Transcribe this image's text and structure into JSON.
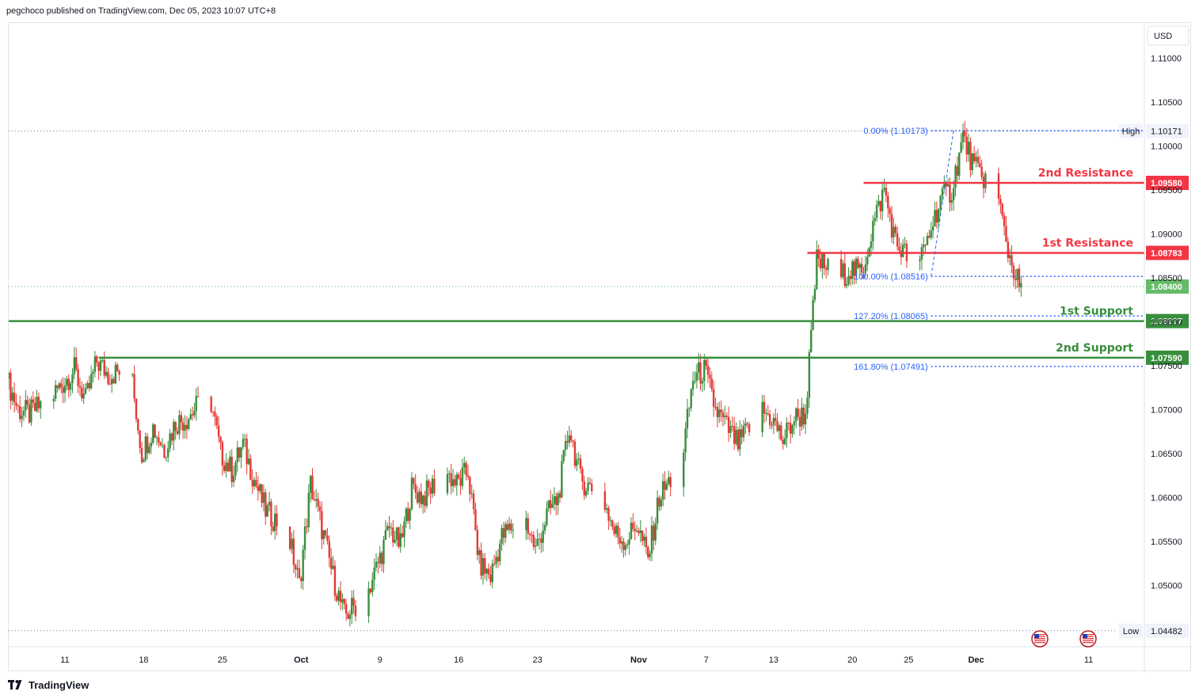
{
  "header": {
    "published_text": "pegchoco published on TradingView.com, Dec 05, 2023 10:07 UTC+8"
  },
  "footer": {
    "brand": "TradingView"
  },
  "colors": {
    "up": "#26a69a",
    "up_body": "#388e3c",
    "down": "#ef5350",
    "down_body": "#e53935",
    "resistance": "#f23645",
    "support": "#388e3c",
    "fib": "#2962ff",
    "current_price": "#66bb6a"
  },
  "chart_data": {
    "type": "candlestick",
    "instrument_currency": "USD",
    "ylim": [
      1.043,
      1.114
    ],
    "y_ticks": [
      "1.11000",
      "1.10500",
      "1.10000",
      "1.09500",
      "1.09000",
      "1.08500",
      "1.08000",
      "1.07500",
      "1.07000",
      "1.06500",
      "1.06000",
      "1.05500",
      "1.05000"
    ],
    "y_tick_values": [
      1.11,
      1.105,
      1.1,
      1.095,
      1.09,
      1.085,
      1.08,
      1.075,
      1.07,
      1.065,
      1.06,
      1.055,
      1.05
    ],
    "x_ticks": [
      {
        "label": "11",
        "date": "2023-09-11"
      },
      {
        "label": "18",
        "date": "2023-09-18"
      },
      {
        "label": "25",
        "date": "2023-09-25"
      },
      {
        "label": "Oct",
        "date": "2023-10-02"
      },
      {
        "label": "9",
        "date": "2023-10-09"
      },
      {
        "label": "16",
        "date": "2023-10-16"
      },
      {
        "label": "23",
        "date": "2023-10-23"
      },
      {
        "label": "Nov",
        "date": "2023-11-01"
      },
      {
        "label": "7",
        "date": "2023-11-07"
      },
      {
        "label": "13",
        "date": "2023-11-13"
      },
      {
        "label": "20",
        "date": "2023-11-20"
      },
      {
        "label": "25",
        "date": "2023-11-25"
      },
      {
        "label": "Dec",
        "date": "2023-12-01"
      },
      {
        "label": "11",
        "date": "2023-12-11"
      }
    ],
    "price_path": [
      [
        "2023-09-06",
        1.0735
      ],
      [
        "2023-09-07",
        1.07
      ],
      [
        "2023-09-08",
        1.0695
      ],
      [
        "2023-09-10",
        1.0715
      ],
      [
        "2023-09-12",
        1.0745
      ],
      [
        "2023-09-13",
        1.071
      ],
      [
        "2023-09-14",
        1.0755
      ],
      [
        "2023-09-15",
        1.074
      ],
      [
        "2023-09-17",
        1.0745
      ],
      [
        "2023-09-18",
        1.065
      ],
      [
        "2023-09-19",
        1.068
      ],
      [
        "2023-09-20",
        1.0655
      ],
      [
        "2023-09-21",
        1.0685
      ],
      [
        "2023-09-22",
        1.069
      ],
      [
        "2023-09-24",
        1.072
      ],
      [
        "2023-09-25",
        1.065
      ],
      [
        "2023-09-26",
        1.063
      ],
      [
        "2023-09-27",
        1.066
      ],
      [
        "2023-09-28",
        1.062
      ],
      [
        "2023-09-29",
        1.0585
      ],
      [
        "2023-10-01",
        1.056
      ],
      [
        "2023-10-02",
        1.05
      ],
      [
        "2023-10-03",
        1.0615
      ],
      [
        "2023-10-04",
        1.0565
      ],
      [
        "2023-10-05",
        1.051
      ],
      [
        "2023-10-06",
        1.0465
      ],
      [
        "2023-10-08",
        1.049
      ],
      [
        "2023-10-09",
        1.0525
      ],
      [
        "2023-10-10",
        1.0565
      ],
      [
        "2023-10-11",
        1.0545
      ],
      [
        "2023-10-12",
        1.061
      ],
      [
        "2023-10-13",
        1.06
      ],
      [
        "2023-10-15",
        1.063
      ],
      [
        "2023-10-16",
        1.0615
      ],
      [
        "2023-10-17",
        1.063
      ],
      [
        "2023-10-18",
        1.0525
      ],
      [
        "2023-10-19",
        1.051
      ],
      [
        "2023-10-20",
        1.0555
      ],
      [
        "2023-10-22",
        1.058
      ],
      [
        "2023-10-23",
        1.054
      ],
      [
        "2023-10-24",
        1.058
      ],
      [
        "2023-10-25",
        1.06
      ],
      [
        "2023-10-26",
        1.068
      ],
      [
        "2023-10-27",
        1.062
      ],
      [
        "2023-10-29",
        1.06
      ],
      [
        "2023-10-30",
        1.056
      ],
      [
        "2023-10-31",
        1.055
      ],
      [
        "2023-11-01",
        1.057
      ],
      [
        "2023-11-02",
        1.053
      ],
      [
        "2023-11-03",
        1.06
      ],
      [
        "2023-11-05",
        1.064
      ],
      [
        "2023-11-06",
        1.0735
      ],
      [
        "2023-11-07",
        1.0745
      ],
      [
        "2023-11-08",
        1.07
      ],
      [
        "2023-11-09",
        1.068
      ],
      [
        "2023-11-10",
        1.066
      ],
      [
        "2023-11-12",
        1.07
      ],
      [
        "2023-11-13",
        1.069
      ],
      [
        "2023-11-14",
        1.0665
      ],
      [
        "2023-11-15",
        1.069
      ],
      [
        "2023-11-16",
        1.0695
      ],
      [
        "2023-11-17",
        1.087
      ],
      [
        "2023-11-19",
        1.085
      ],
      [
        "2023-11-20",
        1.086
      ],
      [
        "2023-11-21",
        1.0855
      ],
      [
        "2023-11-22",
        1.091
      ],
      [
        "2023-11-23",
        1.095
      ],
      [
        "2023-11-24",
        1.089
      ],
      [
        "2023-11-26",
        1.086
      ],
      [
        "2023-11-27",
        1.09
      ],
      [
        "2023-11-28",
        1.094
      ],
      [
        "2023-11-29",
        1.095
      ],
      [
        "2023-11-30",
        1.101
      ],
      [
        "2023-12-01",
        1.0975
      ],
      [
        "2023-12-03",
        1.095
      ],
      [
        "2023-12-04",
        1.088
      ],
      [
        "2023-12-05",
        1.084
      ]
    ],
    "high": {
      "label": "High",
      "value": "1.10171"
    },
    "low": {
      "label": "Low",
      "value": "1.04482"
    },
    "current_price": "1.08400",
    "levels": [
      {
        "name": "2nd Resistance",
        "value": 1.0958,
        "tag": "1.09580",
        "kind": "resistance",
        "from_date": "2023-11-21"
      },
      {
        "name": "1st Resistance",
        "value": 1.08783,
        "tag": "1.08783",
        "kind": "resistance",
        "from_date": "2023-11-16"
      },
      {
        "name": "1st Support",
        "value": 1.08007,
        "tag": "1.08007",
        "kind": "support",
        "from_date": "2023-09-06"
      },
      {
        "name": "2nd Support",
        "value": 1.0759,
        "tag": "1.07590",
        "kind": "support",
        "from_date": "2023-09-14"
      }
    ],
    "fibonacci": [
      {
        "label": "0.00% (1.10173)",
        "value": 1.10173
      },
      {
        "label": "100.00% (1.08516)",
        "value": 1.08516
      },
      {
        "label": "127.20% (1.08065)",
        "value": 1.08065
      },
      {
        "label": "161.80% (1.07491)",
        "value": 1.07491
      }
    ],
    "fib_swing": [
      [
        "2023-11-27",
        1.08516
      ],
      [
        "2023-11-29",
        1.10173
      ]
    ]
  }
}
